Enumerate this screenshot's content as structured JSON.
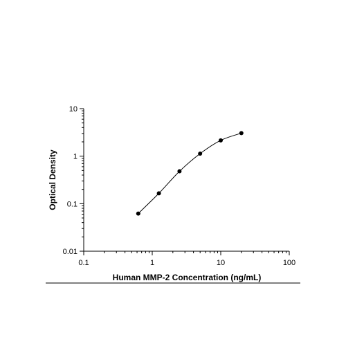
{
  "chart_data": {
    "type": "scatter",
    "title": "",
    "xlabel": "Human MMP-2 Concentration (ng/mL)",
    "ylabel": "Optical Density",
    "x_scale": "log",
    "y_scale": "log",
    "xlim": [
      0.1,
      100
    ],
    "ylim": [
      0.01,
      10
    ],
    "x_ticks": [
      {
        "value": 0.1,
        "label": "0.1"
      },
      {
        "value": 1,
        "label": "1"
      },
      {
        "value": 10,
        "label": "10"
      },
      {
        "value": 100,
        "label": "100"
      }
    ],
    "y_ticks": [
      {
        "value": 0.01,
        "label": "0.01"
      },
      {
        "value": 0.1,
        "label": "0.1"
      },
      {
        "value": 1,
        "label": "1"
      },
      {
        "value": 10,
        "label": "10"
      }
    ],
    "grid": false,
    "legend": "none",
    "fit_line": true,
    "series": [
      {
        "x": [
          0.625,
          1.25,
          2.5,
          5,
          10,
          20
        ],
        "y": [
          0.062,
          0.165,
          0.48,
          1.13,
          2.15,
          3.05
        ]
      }
    ]
  }
}
